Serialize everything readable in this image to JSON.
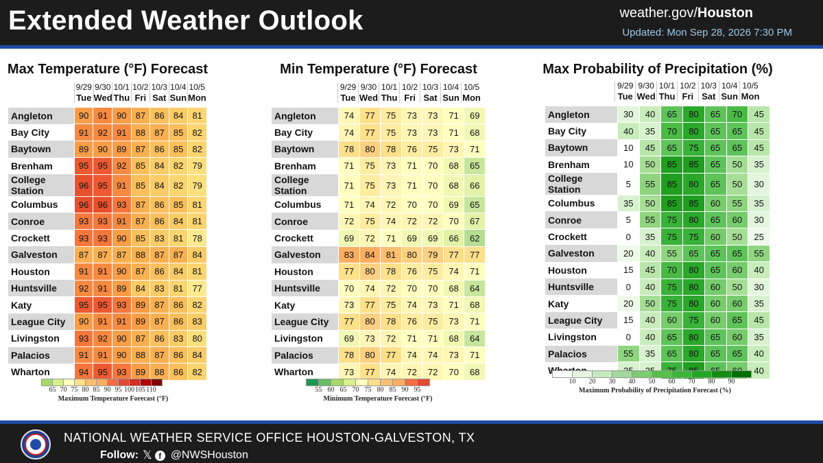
{
  "header": {
    "title": "Extended Weather Outlook",
    "site_prefix": "weather.gov/",
    "site_office": "Houston",
    "updated": "Updated: Mon Sep 28, 2026 7:30 PM"
  },
  "dates": [
    "9/29",
    "9/30",
    "10/1",
    "10/2",
    "10/3",
    "10/4",
    "10/5"
  ],
  "days": [
    "Tue",
    "Wed",
    "Thu",
    "Fri",
    "Sat",
    "Sun",
    "Mon"
  ],
  "cities": [
    "Angleton",
    "Bay City",
    "Baytown",
    "Brenham",
    "College Station",
    "Columbus",
    "Conroe",
    "Crockett",
    "Galveston",
    "Houston",
    "Huntsville",
    "Katy",
    "League City",
    "Livingston",
    "Palacios",
    "Wharton"
  ],
  "max_temp": {
    "title": "Max Temperature (°F) Forecast",
    "legend_title": "Maximum Temperature Forecast (°F)",
    "legend_ticks": [
      "65",
      "70",
      "75",
      "80",
      "85",
      "90",
      "95",
      "100",
      "105",
      "110"
    ],
    "legend_colors": [
      "#a6d96a",
      "#d9ef8b",
      "#ffffbf",
      "#fee08b",
      "#fdbf6f",
      "#fdae61",
      "#f46d43",
      "#e34a33",
      "#d7301f",
      "#b30000",
      "#7f0000"
    ],
    "values": [
      [
        90,
        91,
        90,
        87,
        86,
        84,
        81
      ],
      [
        91,
        92,
        91,
        88,
        87,
        85,
        82
      ],
      [
        89,
        90,
        89,
        87,
        86,
        85,
        82
      ],
      [
        95,
        95,
        92,
        85,
        84,
        82,
        79
      ],
      [
        96,
        95,
        91,
        85,
        84,
        82,
        79
      ],
      [
        96,
        96,
        93,
        87,
        86,
        85,
        81
      ],
      [
        93,
        93,
        91,
        87,
        86,
        84,
        81
      ],
      [
        93,
        93,
        90,
        85,
        83,
        81,
        78
      ],
      [
        87,
        87,
        87,
        88,
        87,
        87,
        84
      ],
      [
        91,
        91,
        90,
        87,
        86,
        84,
        81
      ],
      [
        92,
        91,
        89,
        84,
        83,
        81,
        77
      ],
      [
        95,
        95,
        93,
        89,
        87,
        86,
        82
      ],
      [
        90,
        91,
        91,
        89,
        87,
        86,
        83
      ],
      [
        93,
        92,
        90,
        87,
        86,
        83,
        80
      ],
      [
        91,
        91,
        90,
        88,
        87,
        86,
        84
      ],
      [
        94,
        95,
        93,
        89,
        88,
        86,
        82
      ]
    ]
  },
  "min_temp": {
    "title": "Min Temperature (°F) Forecast",
    "legend_title": "Minimum Temperature Forecast (°F)",
    "legend_ticks": [
      "55",
      "60",
      "65",
      "70",
      "75",
      "80",
      "85",
      "90",
      "95"
    ],
    "legend_colors": [
      "#1a9850",
      "#66bd63",
      "#a6d96a",
      "#d9ef8b",
      "#ffffbf",
      "#fee08b",
      "#fdbf6f",
      "#fdae61",
      "#f46d43",
      "#e34a33"
    ],
    "values": [
      [
        74,
        77,
        75,
        73,
        73,
        71,
        69
      ],
      [
        74,
        77,
        75,
        73,
        73,
        71,
        68
      ],
      [
        78,
        80,
        78,
        76,
        75,
        73,
        71
      ],
      [
        71,
        75,
        73,
        71,
        70,
        68,
        65
      ],
      [
        71,
        75,
        73,
        71,
        70,
        68,
        66
      ],
      [
        71,
        74,
        72,
        70,
        70,
        69,
        65
      ],
      [
        72,
        75,
        74,
        72,
        72,
        70,
        67
      ],
      [
        69,
        72,
        71,
        69,
        69,
        66,
        62
      ],
      [
        83,
        84,
        81,
        80,
        79,
        77,
        77
      ],
      [
        77,
        80,
        78,
        76,
        75,
        74,
        71
      ],
      [
        70,
        74,
        72,
        70,
        70,
        68,
        64
      ],
      [
        73,
        77,
        75,
        74,
        73,
        71,
        68
      ],
      [
        77,
        80,
        78,
        76,
        75,
        73,
        71
      ],
      [
        69,
        73,
        72,
        71,
        71,
        68,
        64
      ],
      [
        78,
        80,
        77,
        74,
        74,
        73,
        71
      ],
      [
        73,
        77,
        74,
        72,
        72,
        70,
        68
      ]
    ]
  },
  "pop": {
    "title": "Max Probability of Precipitation (%)",
    "legend_title": "Maximum Probability of Precipitation Forecast (%)",
    "legend_ticks": [
      "10",
      "20",
      "30",
      "40",
      "50",
      "60",
      "70",
      "80",
      "90"
    ],
    "legend_colors": [
      "#ffffff",
      "#e5f5e0",
      "#c7e9c0",
      "#a1d99b",
      "#7ccd6f",
      "#55bf4a",
      "#3ab53a",
      "#22a722",
      "#118d11",
      "#006d00"
    ],
    "values": [
      [
        30,
        40,
        65,
        80,
        65,
        70,
        45
      ],
      [
        40,
        35,
        70,
        80,
        65,
        65,
        45
      ],
      [
        10,
        45,
        65,
        75,
        65,
        65,
        45
      ],
      [
        10,
        50,
        85,
        85,
        65,
        50,
        35
      ],
      [
        5,
        55,
        85,
        80,
        65,
        50,
        30
      ],
      [
        35,
        50,
        85,
        85,
        60,
        55,
        35
      ],
      [
        5,
        55,
        75,
        80,
        65,
        60,
        30
      ],
      [
        0,
        35,
        75,
        75,
        60,
        50,
        25
      ],
      [
        20,
        40,
        55,
        65,
        65,
        65,
        55
      ],
      [
        15,
        45,
        70,
        80,
        65,
        60,
        40
      ],
      [
        0,
        40,
        75,
        80,
        60,
        50,
        30
      ],
      [
        20,
        50,
        75,
        80,
        60,
        60,
        35
      ],
      [
        15,
        40,
        60,
        75,
        60,
        65,
        45
      ],
      [
        0,
        40,
        65,
        80,
        65,
        60,
        35
      ],
      [
        55,
        35,
        65,
        80,
        65,
        65,
        40
      ],
      [
        35,
        35,
        75,
        85,
        65,
        60,
        40
      ]
    ]
  },
  "footer": {
    "office": "NATIONAL WEATHER SERVICE OFFICE HOUSTON-GALVESTON, TX",
    "follow_label": "Follow:",
    "handle": "@NWSHouston",
    "x_glyph": "𝕏",
    "fb_glyph": "f"
  }
}
